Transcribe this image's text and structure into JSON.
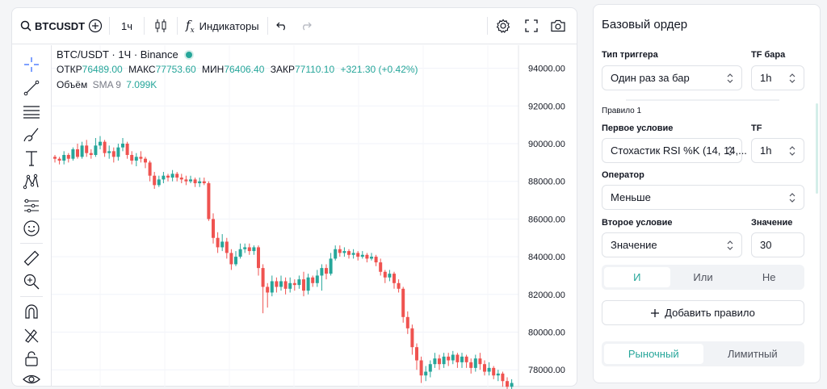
{
  "toolbar": {
    "symbol": "BTCUSDT",
    "interval": "1ч",
    "indicators_label": "Индикаторы"
  },
  "legend": {
    "title": "BTC/USDT · 1Ч · Binance",
    "open_label": "ОТКР",
    "open_value": "76489.00",
    "high_label": "МАКС",
    "high_value": "77753.60",
    "low_label": "МИН",
    "low_value": "76406.40",
    "close_label": "ЗАКР",
    "close_value": "77110.10",
    "change": "+321.30 (+0.42%)",
    "volume_label": "Объём",
    "sma_label": "SMA 9",
    "volume_value": "7.099K"
  },
  "chart_data": {
    "type": "candlestick",
    "y_ticks": [
      "94000.00",
      "92000.00",
      "90000.00",
      "88000.00",
      "86000.00",
      "84000.00",
      "82000.00",
      "80000.00",
      "78000.00"
    ],
    "ylim": [
      77000,
      95000
    ],
    "candles": [
      [
        89300,
        89200,
        89400,
        89000
      ],
      [
        89200,
        89100,
        89300,
        88900
      ],
      [
        89100,
        89400,
        89600,
        88900
      ],
      [
        89400,
        89200,
        89500,
        89000
      ],
      [
        89200,
        89700,
        89800,
        89100
      ],
      [
        89700,
        89300,
        90000,
        89200
      ],
      [
        89300,
        89900,
        90100,
        89200
      ],
      [
        89900,
        89500,
        90200,
        89300
      ],
      [
        89500,
        89400,
        89700,
        89200
      ],
      [
        89400,
        89900,
        90300,
        89300
      ],
      [
        89900,
        90100,
        90400,
        89700
      ],
      [
        90100,
        89500,
        90200,
        89300
      ],
      [
        89500,
        89600,
        89900,
        89200
      ],
      [
        89600,
        89300,
        89800,
        89000
      ],
      [
        89300,
        89800,
        90000,
        89100
      ],
      [
        89800,
        90000,
        90300,
        89600
      ],
      [
        90000,
        89400,
        90100,
        89200
      ],
      [
        89400,
        89100,
        89600,
        88900
      ],
      [
        89100,
        89300,
        89500,
        88800
      ],
      [
        89300,
        89200,
        89600,
        89000
      ],
      [
        89200,
        89000,
        89300,
        88700
      ],
      [
        89000,
        88300,
        89100,
        88000
      ],
      [
        88300,
        87800,
        88500,
        87600
      ],
      [
        87800,
        88100,
        88300,
        87700
      ],
      [
        88100,
        88300,
        88500,
        87900
      ],
      [
        88300,
        88200,
        88400,
        88000
      ],
      [
        88200,
        88400,
        88600,
        88000
      ],
      [
        88400,
        88200,
        88500,
        88000
      ],
      [
        88200,
        88100,
        88400,
        87900
      ],
      [
        88100,
        88000,
        88300,
        87800
      ],
      [
        88000,
        88100,
        88300,
        87900
      ],
      [
        88100,
        87900,
        88200,
        87700
      ],
      [
        87900,
        88000,
        88200,
        87700
      ],
      [
        88000,
        87900,
        88200,
        87800
      ],
      [
        87900,
        86000,
        88000,
        85900
      ],
      [
        86000,
        85000,
        86300,
        84700
      ],
      [
        85000,
        84500,
        85300,
        84200
      ],
      [
        84500,
        84800,
        85200,
        84300
      ],
      [
        84800,
        84200,
        85000,
        83900
      ],
      [
        84200,
        83600,
        84400,
        83300
      ],
      [
        83600,
        84000,
        84300,
        83500
      ],
      [
        84000,
        84400,
        84700,
        83900
      ],
      [
        84400,
        84500,
        84700,
        84200
      ],
      [
        84500,
        84300,
        84700,
        84100
      ],
      [
        84300,
        84500,
        84600,
        84100
      ],
      [
        84500,
        83400,
        84600,
        83000
      ],
      [
        83400,
        82400,
        83600,
        81000
      ],
      [
        82400,
        82100,
        82600,
        81300
      ],
      [
        82100,
        82700,
        83000,
        81900
      ],
      [
        82700,
        82400,
        82900,
        82100
      ],
      [
        82400,
        82700,
        83000,
        82200
      ],
      [
        82700,
        82300,
        82900,
        82000
      ],
      [
        82300,
        82600,
        82900,
        82100
      ],
      [
        82600,
        82500,
        82800,
        82200
      ],
      [
        82500,
        82800,
        83000,
        82300
      ],
      [
        82800,
        82200,
        83200,
        81900
      ],
      [
        82200,
        82900,
        83100,
        82000
      ],
      [
        82900,
        82600,
        83000,
        82400
      ],
      [
        82600,
        83000,
        83300,
        82400
      ],
      [
        83000,
        83400,
        83600,
        82200
      ],
      [
        83400,
        83100,
        83600,
        82800
      ],
      [
        83100,
        83900,
        84200,
        83000
      ],
      [
        83900,
        84400,
        84600,
        83800
      ],
      [
        84400,
        84200,
        84600,
        84000
      ],
      [
        84200,
        84300,
        84500,
        84000
      ],
      [
        84300,
        84100,
        84400,
        83900
      ],
      [
        84100,
        84200,
        84400,
        83900
      ],
      [
        84200,
        84000,
        84300,
        83800
      ],
      [
        84000,
        84100,
        84300,
        83900
      ],
      [
        84100,
        83900,
        84200,
        83700
      ],
      [
        83900,
        84000,
        84200,
        83800
      ],
      [
        84000,
        83700,
        84100,
        83500
      ],
      [
        83700,
        83200,
        83900,
        83000
      ],
      [
        83200,
        82900,
        83300,
        82600
      ],
      [
        82900,
        83100,
        83300,
        82700
      ],
      [
        83100,
        82600,
        83200,
        82300
      ],
      [
        82600,
        82300,
        82800,
        82100
      ],
      [
        82300,
        80800,
        82400,
        80500
      ],
      [
        80800,
        80200,
        81100,
        79900
      ],
      [
        80200,
        79200,
        80400,
        78800
      ],
      [
        79200,
        78500,
        79400,
        78000
      ],
      [
        78500,
        77700,
        78700,
        77300
      ],
      [
        77700,
        77900,
        78200,
        77400
      ],
      [
        77900,
        78300,
        78500,
        77600
      ],
      [
        78300,
        78600,
        78900,
        78100
      ],
      [
        78600,
        78300,
        78800,
        78000
      ],
      [
        78300,
        78700,
        78900,
        78100
      ],
      [
        78700,
        78500,
        78900,
        78200
      ],
      [
        78500,
        78800,
        79000,
        78300
      ],
      [
        78800,
        78400,
        78900,
        78100
      ],
      [
        78400,
        78700,
        78900,
        78100
      ],
      [
        78700,
        78400,
        78800,
        78100
      ],
      [
        78400,
        78100,
        78600,
        77800
      ],
      [
        78100,
        78600,
        78800,
        77900
      ],
      [
        78600,
        78300,
        78900,
        78000
      ],
      [
        78300,
        77900,
        78500,
        77700
      ],
      [
        77900,
        78100,
        78400,
        77700
      ],
      [
        78100,
        77700,
        78200,
        77500
      ],
      [
        77700,
        77800,
        78000,
        77400
      ],
      [
        77800,
        77400,
        77900,
        77100
      ],
      [
        77400,
        77100,
        77600,
        76900
      ],
      [
        77100,
        77300,
        77500,
        76900
      ]
    ]
  },
  "order": {
    "title": "Базовый ордер",
    "trigger_type_label": "Тип триггера",
    "tf_bar_label": "TF бара",
    "trigger_type_value": "Один раз за бар",
    "tf_bar_value": "1h",
    "rule_label": "Правило 1",
    "first_condition_label": "Первое условие",
    "tf_label": "TF",
    "first_condition_value": "Стохастик RSI %K (14, 14,...",
    "tf_value": "1h",
    "operator_label": "Оператор",
    "operator_value": "Меньше",
    "second_condition_label": "Второе условие",
    "value_label": "Значение",
    "second_condition_value": "Значение",
    "value_value": "30",
    "logic": [
      "И",
      "Или",
      "Не"
    ],
    "add_rule_label": "Добавить правило",
    "order_type": [
      "Рыночный",
      "Лимитный"
    ]
  },
  "colors": {
    "up": "#26a69a",
    "down": "#ef5350",
    "accent": "#26a69a"
  }
}
